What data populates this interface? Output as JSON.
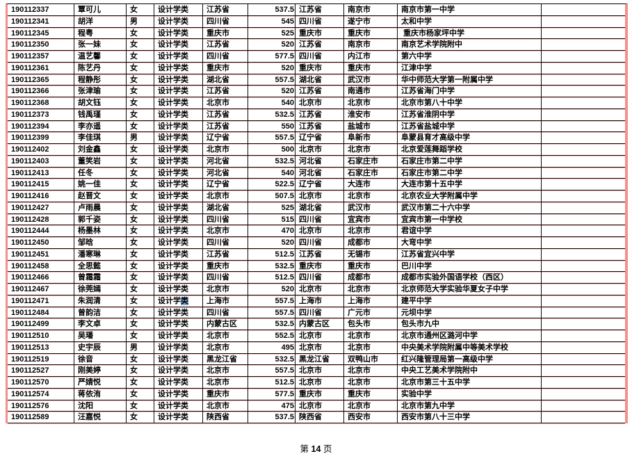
{
  "footer": {
    "prefix": "第",
    "number": "14",
    "suffix": "页"
  },
  "table": {
    "field_names": [
      "student_id",
      "name",
      "gender",
      "category",
      "exam_province",
      "score",
      "province",
      "city",
      "school",
      "empty"
    ],
    "highlight": {
      "row_index": 25,
      "field_index": 3,
      "prefix": "设计学",
      "selected": "类",
      "selection_color": "#7fa8d9"
    },
    "border_colors": {
      "grid": "#0a0a0a",
      "outer_accent": "#f2908b"
    },
    "rows": [
      [
        "190112337",
        "覃可儿",
        "女",
        "设计学类",
        "江苏省",
        "537.5",
        "江苏省",
        "南京市",
        "南京市第一中学",
        ""
      ],
      [
        "190112341",
        "胡洋",
        "男",
        "设计学类",
        "四川省",
        "545",
        "四川省",
        "遂宁市",
        "太和中学",
        ""
      ],
      [
        "190112345",
        "程粤",
        "女",
        "设计学类",
        "重庆市",
        "525",
        "重庆市",
        "重庆市",
        " 重庆市杨家坪中学",
        ""
      ],
      [
        "190112350",
        "张一妹",
        "女",
        "设计学类",
        "江苏省",
        "520",
        "江苏省",
        "南京市",
        "南京艺术学院附中",
        ""
      ],
      [
        "190112357",
        "温艺馨",
        "女",
        "设计学类",
        "四川省",
        "577.5",
        "四川省",
        "内江市",
        "第六中学",
        ""
      ],
      [
        "190112361",
        "陈艺丹",
        "女",
        "设计学类",
        "重庆市",
        "520",
        "重庆市",
        "重庆市",
        "江津中学",
        ""
      ],
      [
        "190112365",
        "程静彤",
        "女",
        "设计学类",
        "湖北省",
        "557.5",
        "湖北省",
        "武汉市",
        "华中师范大学第一附属中学",
        ""
      ],
      [
        "190112366",
        "张津瑜",
        "女",
        "设计学类",
        "江苏省",
        "520",
        "江苏省",
        "南通市",
        "江苏省海门中学",
        ""
      ],
      [
        "190112368",
        "胡文钰",
        "女",
        "设计学类",
        "北京市",
        "540",
        "北京市",
        "北京市",
        "北京市第八十中学",
        ""
      ],
      [
        "190112373",
        "钱禹瑾",
        "女",
        "设计学类",
        "江苏省",
        "532.5",
        "江苏省",
        "淮安市",
        "江苏省淮阴中学",
        ""
      ],
      [
        "190112394",
        "李亦遥",
        "女",
        "设计学类",
        "江苏省",
        "550",
        "江苏省",
        "盐城市",
        "江苏省盐城中学",
        ""
      ],
      [
        "190112399",
        "李佳琪",
        "男",
        "设计学类",
        "辽宁省",
        "557.5",
        "辽宁省",
        "阜新市",
        "阜蒙县育才高级中学",
        ""
      ],
      [
        "190112402",
        "刘金鑫",
        "女",
        "设计学类",
        "北京市",
        "500",
        "北京市",
        "北京市",
        "北京爱莲舞蹈学校",
        ""
      ],
      [
        "190112403",
        "董笑岩",
        "女",
        "设计学类",
        "河北省",
        "532.5",
        "河北省",
        "石家庄市",
        "石家庄市第二中学",
        ""
      ],
      [
        "190112413",
        "任冬",
        "女",
        "设计学类",
        "河北省",
        "540",
        "河北省",
        "石家庄市",
        "石家庄市第二中学",
        ""
      ],
      [
        "190112415",
        "姚一佳",
        "女",
        "设计学类",
        "辽宁省",
        "522.5",
        "辽宁省",
        "大连市",
        "大连市第十五中学",
        ""
      ],
      [
        "190112416",
        "赵晋文",
        "女",
        "设计学类",
        "北京市",
        "507.5",
        "北京市",
        "北京市",
        "北京农业大学附属中学",
        ""
      ],
      [
        "190112427",
        "卢雨晨",
        "女",
        "设计学类",
        "湖北省",
        "525",
        "湖北省",
        "武汉市",
        "武汉市第二十六中学",
        ""
      ],
      [
        "190112428",
        "郭千姿",
        "女",
        "设计学类",
        "四川省",
        "515",
        "四川省",
        "宜宾市",
        "宜宾市第一中学校",
        ""
      ],
      [
        "190112444",
        "杨墨林",
        "女",
        "设计学类",
        "北京市",
        "470",
        "北京市",
        "北京市",
        "君谊中学",
        ""
      ],
      [
        "190112450",
        "邹晗",
        "女",
        "设计学类",
        "四川省",
        "520",
        "四川省",
        "成都市",
        "大弯中学",
        ""
      ],
      [
        "190112451",
        "潘寒琳",
        "女",
        "设计学类",
        "江苏省",
        "512.5",
        "江苏省",
        "无锡市",
        "江苏省宜兴中学",
        ""
      ],
      [
        "190112458",
        "全思懿",
        "女",
        "设计学类",
        "重庆市",
        "532.5",
        "重庆市",
        "重庆市",
        "巴川中学",
        ""
      ],
      [
        "190112466",
        "曾霜霜",
        "女",
        "设计学类",
        "四川省",
        "512.5",
        "四川省",
        "成都市",
        "成都市实验外国语学校（西区）",
        ""
      ],
      [
        "190112467",
        "徐莞嫣",
        "女",
        "设计学类",
        "北京市",
        "520",
        "北京市",
        "北京市",
        "北京师范大学实验华夏女子中学",
        ""
      ],
      [
        "190112471",
        "朱润清",
        "女",
        "设计学类",
        "上海市",
        "557.5",
        "上海市",
        "上海市",
        "建平中学",
        ""
      ],
      [
        "190112484",
        "曾韵洁",
        "女",
        "设计学类",
        "四川省",
        "557.5",
        "四川省",
        "广元市",
        "元坝中学",
        ""
      ],
      [
        "190112499",
        "李文卓",
        "女",
        "设计学类",
        "内蒙古区",
        "532.5",
        "内蒙古区",
        "包头市",
        "包头市九中",
        ""
      ],
      [
        "190112510",
        "吴璠",
        "女",
        "设计学类",
        "北京市",
        "552.5",
        "北京市",
        "北京市",
        "北京市通州区潞河中学",
        ""
      ],
      [
        "190112513",
        "史宇辰",
        "男",
        "设计学类",
        "北京市",
        "495",
        "北京市",
        "北京市",
        "中央美术学院附属中等美术学校",
        ""
      ],
      [
        "190112519",
        "徐音",
        "女",
        "设计学类",
        "黑龙江省",
        "532.5",
        "黑龙江省",
        "双鸭山市",
        "红兴隆管理局第一高级中学",
        ""
      ],
      [
        "190112527",
        "刚美婷",
        "女",
        "设计学类",
        "北京市",
        "557.5",
        "北京市",
        "北京市",
        "中央工艺美术学院附中",
        ""
      ],
      [
        "190112570",
        "严婧悦",
        "女",
        "设计学类",
        "北京市",
        "512.5",
        "北京市",
        "北京市",
        "北京市第三十五中学",
        ""
      ],
      [
        "190112574",
        "蒋依洧",
        "女",
        "设计学类",
        "重庆市",
        "577.5",
        "重庆市",
        "重庆市",
        "实验中学",
        ""
      ],
      [
        "190112576",
        "沈阳",
        "女",
        "设计学类",
        "北京市",
        "475",
        "北京市",
        "北京市",
        "北京市第九中学",
        ""
      ],
      [
        "190112589",
        "汪嘉悦",
        "女",
        "设计学类",
        "陕西省",
        "537.5",
        "陕西省",
        "西安市",
        "西安市第八十三中学",
        ""
      ]
    ]
  }
}
